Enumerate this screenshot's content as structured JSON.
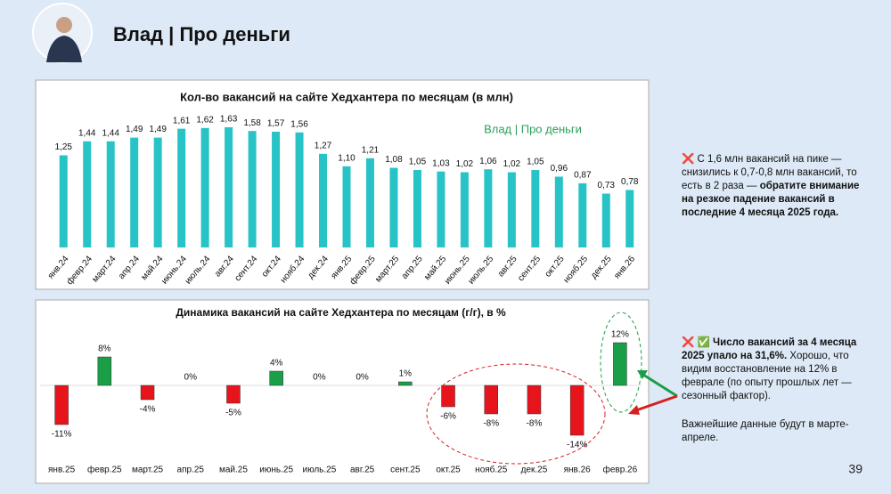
{
  "header": {
    "title": "Влад | Про деньги"
  },
  "chart_data": [
    {
      "type": "bar",
      "title": "Кол-во вакансий на сайте Хедхантера по месяцам (в млн)",
      "annotation": "Влад | Про деньги",
      "color": "#27c3c6",
      "categories": [
        "янв.24",
        "февр.24",
        "март.24",
        "апр.24",
        "май.24",
        "июнь.24",
        "июль.24",
        "авг.24",
        "сент.24",
        "окт.24",
        "нояб.24",
        "дек.24",
        "янв.25",
        "февр.25",
        "март.25",
        "апр.25",
        "май.25",
        "июнь.25",
        "июль.25",
        "авг.25",
        "сент.25",
        "окт.25",
        "нояб.25",
        "дек.25",
        "янв.26"
      ],
      "values": [
        1.25,
        1.44,
        1.44,
        1.49,
        1.49,
        1.61,
        1.62,
        1.63,
        1.58,
        1.57,
        1.56,
        1.27,
        1.1,
        1.21,
        1.08,
        1.05,
        1.03,
        1.02,
        1.06,
        1.02,
        1.05,
        0.96,
        0.87,
        0.73,
        0.78
      ],
      "value_labels": [
        "1,25",
        "1,44",
        "1,44",
        "1,49",
        "1,49",
        "1,61",
        "1,62",
        "1,63",
        "1,58",
        "1,57",
        "1,56",
        "1,27",
        "1,10",
        "1,21",
        "1,08",
        "1,05",
        "1,03",
        "1,02",
        "1,06",
        "1,02",
        "1,05",
        "0,96",
        "0,87",
        "0,73",
        "0,78"
      ]
    },
    {
      "type": "bar",
      "title": "Динамика вакансий на сайте Хедхантера по месяцам (г/г), в %",
      "color_positive": "#1a9e48",
      "color_negative": "#e8141b",
      "categories": [
        "янв.25",
        "февр.25",
        "март.25",
        "апр.25",
        "май.25",
        "июнь.25",
        "июль.25",
        "авг.25",
        "сент.25",
        "окт.25",
        "нояб.25",
        "дек.25",
        "янв.26",
        "февр.26"
      ],
      "values": [
        -11,
        8,
        -4,
        0,
        -5,
        4,
        0,
        0,
        1,
        -6,
        -8,
        -8,
        -14,
        12
      ],
      "value_labels": [
        "-11%",
        "8%",
        "-4%",
        "0%",
        "-5%",
        "4%",
        "0%",
        "0%",
        "1%",
        "-6%",
        "-8%",
        "-8%",
        "-14%",
        "12%"
      ]
    }
  ],
  "notes": [
    {
      "icons": "❌",
      "text": "С 1,6 млн вакансий на пике — снизились к 0,7-0,8 млн вакансий, то есть в 2 раза — ",
      "emphasis": "обратите внимание на резкое падение вакансий в последние 4 месяца 2025 года."
    },
    {
      "icons": "❌ ✅",
      "emphasis": "Число вакансий за 4 месяца 2025 упало на 31,6%.",
      "text": " Хорошо, что видим восстановление на 12% в феврале (по опыту прошлых лет — сезонный фактор)."
    },
    {
      "text": "Важнейшие данные будут в марте-апреле."
    }
  ],
  "page_number": "39"
}
